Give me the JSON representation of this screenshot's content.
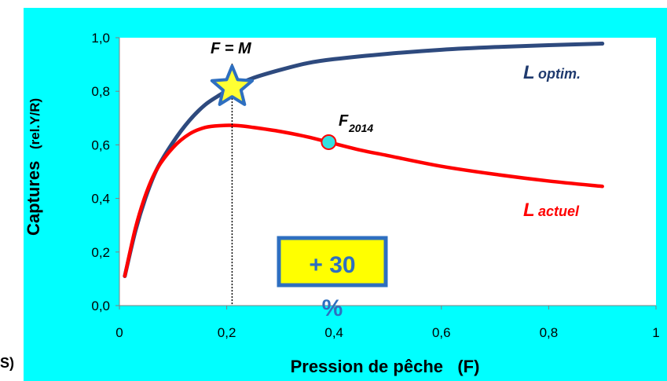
{
  "stub_text": "S)",
  "chart_data": {
    "type": "line",
    "xlabel": "Pression de pêche   (F)",
    "ylabel_main": "Captures",
    "ylabel_unit": "(rel.Y/R)",
    "xlim": [
      0,
      1
    ],
    "ylim": [
      0,
      1
    ],
    "x_ticks": [
      "0",
      "0,2",
      "0,4",
      "0,6",
      "0,8",
      "1"
    ],
    "y_ticks": [
      "0,0",
      "0,2",
      "0,4",
      "0,6",
      "0,8",
      "1,0"
    ],
    "grid": false,
    "series": [
      {
        "name": "L optim.",
        "label_main": "L",
        "label_sub": "optim.",
        "color": "#2e4a7e",
        "x": [
          0.01,
          0.03,
          0.05,
          0.07,
          0.1,
          0.13,
          0.16,
          0.19,
          0.21,
          0.25,
          0.3,
          0.35,
          0.4,
          0.5,
          0.6,
          0.7,
          0.8,
          0.9
        ],
        "y": [
          0.11,
          0.28,
          0.41,
          0.51,
          0.61,
          0.69,
          0.75,
          0.79,
          0.815,
          0.85,
          0.88,
          0.905,
          0.92,
          0.94,
          0.955,
          0.965,
          0.972,
          0.978
        ]
      },
      {
        "name": "L actuel",
        "label_main": "L",
        "label_sub": "actuel",
        "color": "#ff0000",
        "x": [
          0.01,
          0.03,
          0.05,
          0.07,
          0.1,
          0.13,
          0.16,
          0.19,
          0.22,
          0.25,
          0.3,
          0.35,
          0.39,
          0.45,
          0.5,
          0.6,
          0.7,
          0.8,
          0.9
        ],
        "y": [
          0.11,
          0.29,
          0.42,
          0.51,
          0.59,
          0.64,
          0.665,
          0.672,
          0.672,
          0.665,
          0.65,
          0.63,
          0.61,
          0.58,
          0.56,
          0.52,
          0.49,
          0.465,
          0.445
        ]
      }
    ],
    "annotations": {
      "f_eq_m": {
        "text": "F = M",
        "x": 0.21,
        "y": 0.815
      },
      "f2014": {
        "text_main": "F",
        "text_sub": "2014",
        "x": 0.39,
        "y": 0.61
      },
      "gain_box": {
        "line1": "+ 30",
        "line2": "%"
      }
    }
  }
}
